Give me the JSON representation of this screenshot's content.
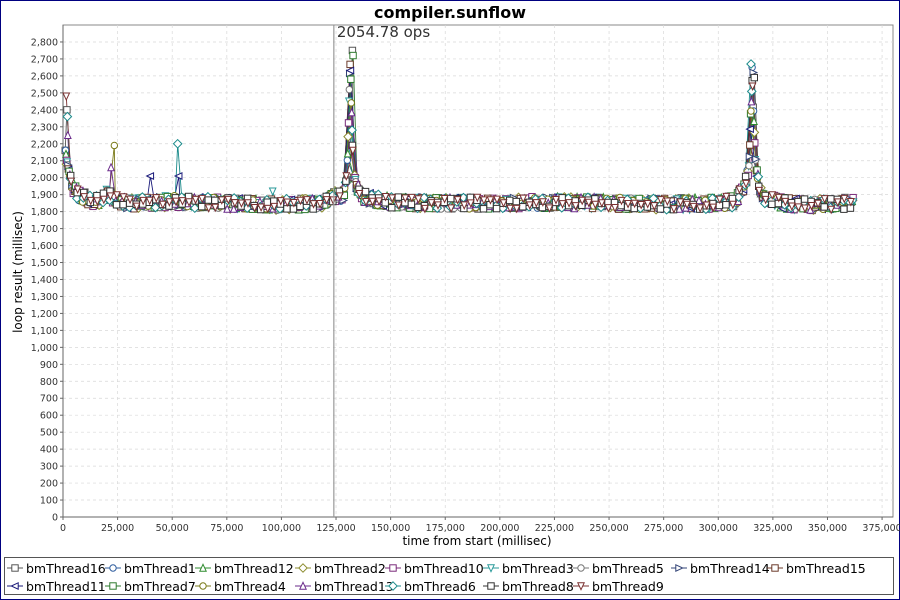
{
  "chart_data": {
    "type": "line",
    "title": "compiler.sunflow",
    "xlabel": "time from start (millisec)",
    "ylabel": "loop result (millisec)",
    "xlim": [
      0,
      380000
    ],
    "ylim": [
      0,
      2900
    ],
    "x_ticks": [
      "0",
      "25,000",
      "50,000",
      "75,000",
      "100,000",
      "125,000",
      "150,000",
      "175,000",
      "200,000",
      "225,000",
      "250,000",
      "275,000",
      "300,000",
      "325,000",
      "350,000",
      "375,000"
    ],
    "y_ticks": [
      "0",
      "100",
      "200",
      "300",
      "400",
      "500",
      "600",
      "700",
      "800",
      "900",
      "1,000",
      "1,100",
      "1,200",
      "1,300",
      "1,400",
      "1,500",
      "1,600",
      "1,700",
      "1,800",
      "1,900",
      "2,000",
      "2,100",
      "2,200",
      "2,300",
      "2,400",
      "2,500",
      "2,600",
      "2,700",
      "2,800"
    ],
    "grid": true,
    "legend_position": "bottom",
    "marker": {
      "x": 124000,
      "label": "2054.78 ops"
    },
    "series": [
      {
        "name": "bmThread16",
        "color": "#555555",
        "marker": "square"
      },
      {
        "name": "bmThread1",
        "color": "#2f5d9e",
        "marker": "circle"
      },
      {
        "name": "bmThread12",
        "color": "#2e8b2e",
        "marker": "triangle-up"
      },
      {
        "name": "bmThread2",
        "color": "#8b8b2e",
        "marker": "diamond"
      },
      {
        "name": "bmThread10",
        "color": "#7a2a7a",
        "marker": "square"
      },
      {
        "name": "bmThread3",
        "color": "#2a9a9a",
        "marker": "triangle-down"
      },
      {
        "name": "bmThread5",
        "color": "#777777",
        "marker": "circle"
      },
      {
        "name": "bmThread14",
        "color": "#334477",
        "marker": "triangle-right"
      },
      {
        "name": "bmThread15",
        "color": "#6b3a2a",
        "marker": "square"
      },
      {
        "name": "bmThread11",
        "color": "#1a1a7a",
        "marker": "triangle-left"
      },
      {
        "name": "bmThread7",
        "color": "#2e7a2e",
        "marker": "square"
      },
      {
        "name": "bmThread4",
        "color": "#7a7a1a",
        "marker": "circle"
      },
      {
        "name": "bmThread13",
        "color": "#6a2a8a",
        "marker": "triangle-up"
      },
      {
        "name": "bmThread6",
        "color": "#1a8a8a",
        "marker": "diamond"
      },
      {
        "name": "bmThread8",
        "color": "#333333",
        "marker": "square"
      },
      {
        "name": "bmThread9",
        "color": "#7a3030",
        "marker": "triangle-down"
      }
    ],
    "profile": {
      "x": [
        1000,
        3000,
        5000,
        8000,
        12000,
        16000,
        20000,
        24000,
        30000,
        40000,
        50000,
        60000,
        75000,
        90000,
        100000,
        110000,
        118000,
        122000,
        124000,
        126000,
        128000,
        130000,
        131500,
        133000,
        136000,
        140000,
        150000,
        175000,
        200000,
        225000,
        250000,
        275000,
        300000,
        308000,
        312000,
        314000,
        315500,
        317000,
        319000,
        322000,
        330000,
        340000,
        350000,
        362000
      ],
      "y": [
        2150,
        2000,
        1930,
        1890,
        1870,
        1860,
        1900,
        1870,
        1850,
        1855,
        1860,
        1855,
        1850,
        1845,
        1840,
        1845,
        1850,
        1870,
        1890,
        1900,
        1880,
        2000,
        2700,
        2000,
        1900,
        1880,
        1855,
        1850,
        1850,
        1855,
        1850,
        1845,
        1850,
        1860,
        1950,
        2050,
        2600,
        2100,
        1920,
        1870,
        1850,
        1840,
        1845,
        1850
      ]
    },
    "spikes": [
      {
        "x": 1500,
        "y": 2480,
        "series": "bmThread9"
      },
      {
        "x": 1800,
        "y": 2400,
        "series": "bmThread16"
      },
      {
        "x": 2000,
        "y": 2360,
        "series": "bmThread6"
      },
      {
        "x": 2200,
        "y": 2250,
        "series": "bmThread13"
      },
      {
        "x": 22000,
        "y": 2060,
        "series": "bmThread13"
      },
      {
        "x": 23500,
        "y": 2190,
        "series": "bmThread4"
      },
      {
        "x": 40000,
        "y": 2010,
        "series": "bmThread11"
      },
      {
        "x": 52500,
        "y": 2200,
        "series": "bmThread6"
      },
      {
        "x": 53000,
        "y": 2010,
        "series": "bmThread11"
      },
      {
        "x": 96000,
        "y": 1920,
        "series": "bmThread3"
      },
      {
        "x": 132500,
        "y": 2750,
        "series": "bmThread16"
      },
      {
        "x": 132800,
        "y": 2720,
        "series": "bmThread7"
      },
      {
        "x": 315000,
        "y": 2670,
        "series": "bmThread6"
      },
      {
        "x": 315500,
        "y": 2650,
        "series": "bmThread1"
      },
      {
        "x": 316000,
        "y": 2620,
        "series": "bmThread14"
      },
      {
        "x": 316500,
        "y": 2590,
        "series": "bmThread8"
      }
    ]
  }
}
